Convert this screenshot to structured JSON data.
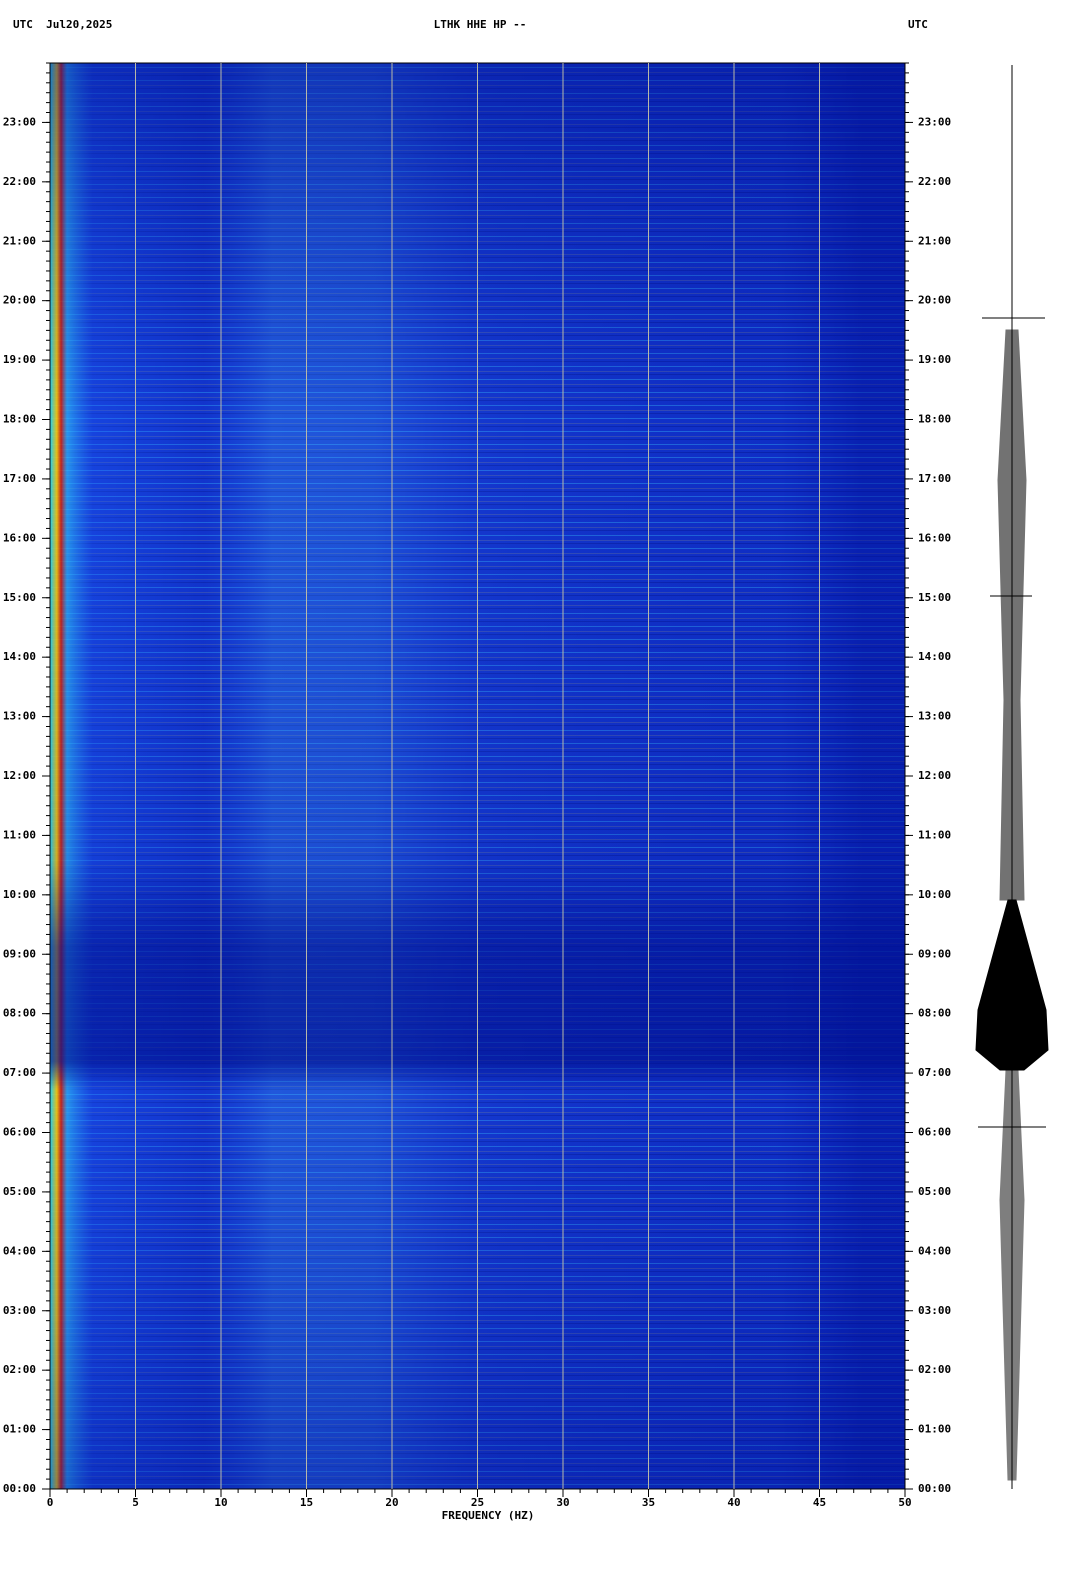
{
  "chart_data": {
    "type": "spectrogram",
    "title": "LTHK HHE HP --",
    "left_header": "UTC  Jul20,2025",
    "right_header": "UTC",
    "xlabel": "FREQUENCY (HZ)",
    "xlim": [
      0,
      50
    ],
    "xticks": [
      0,
      5,
      10,
      15,
      20,
      25,
      30,
      35,
      40,
      45,
      50
    ],
    "ylim": [
      0,
      24
    ],
    "yticks": [
      {
        "value": 0,
        "label": "00:00"
      },
      {
        "value": 1,
        "label": "01:00"
      },
      {
        "value": 2,
        "label": "02:00"
      },
      {
        "value": 3,
        "label": "03:00"
      },
      {
        "value": 4,
        "label": "04:00"
      },
      {
        "value": 5,
        "label": "05:00"
      },
      {
        "value": 6,
        "label": "06:00"
      },
      {
        "value": 7,
        "label": "07:00"
      },
      {
        "value": 8,
        "label": "08:00"
      },
      {
        "value": 9,
        "label": "09:00"
      },
      {
        "value": 10,
        "label": "10:00"
      },
      {
        "value": 11,
        "label": "11:00"
      },
      {
        "value": 12,
        "label": "12:00"
      },
      {
        "value": 13,
        "label": "13:00"
      },
      {
        "value": 14,
        "label": "14:00"
      },
      {
        "value": 15,
        "label": "15:00"
      },
      {
        "value": 16,
        "label": "16:00"
      },
      {
        "value": 17,
        "label": "17:00"
      },
      {
        "value": 18,
        "label": "18:00"
      },
      {
        "value": 19,
        "label": "19:00"
      },
      {
        "value": 20,
        "label": "20:00"
      },
      {
        "value": 21,
        "label": "21:00"
      },
      {
        "value": 22,
        "label": "22:00"
      },
      {
        "value": 23,
        "label": "23:00"
      }
    ],
    "grid": true
  }
}
